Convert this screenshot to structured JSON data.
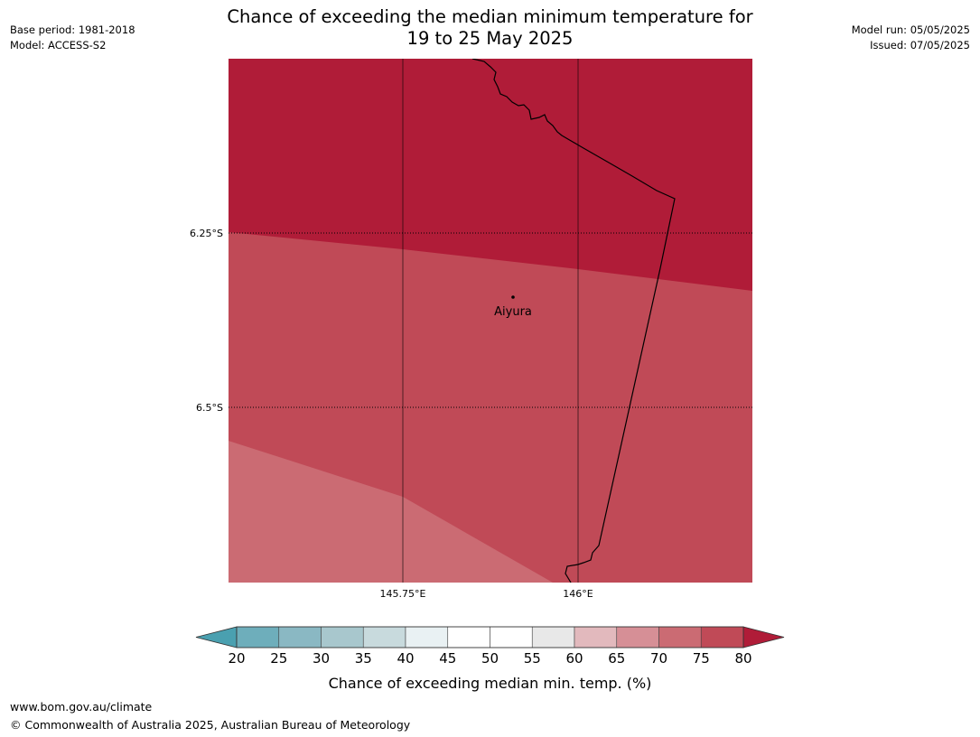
{
  "title": {
    "line1": "Chance of exceeding the median minimum temperature for",
    "line2": "19 to 25 May 2025"
  },
  "meta_left": {
    "base_period": "Base period: 1981-2018",
    "model": "Model: ACCESS-S2"
  },
  "meta_right": {
    "model_run": "Model run: 05/05/2025",
    "issued": "Issued: 07/05/2025"
  },
  "map": {
    "lat_labels": [
      "6.25°S",
      "6.5°S"
    ],
    "lon_labels": [
      "145.75°E",
      "146°E"
    ],
    "place_label": "Aiyura",
    "region_colors": {
      "above_80": "#b01c38",
      "band_75_80": "#c04a57",
      "band_70_75": "#cb6b73"
    },
    "coastline_color": "#000000"
  },
  "colorbar": {
    "ticks": [
      "20",
      "25",
      "30",
      "35",
      "40",
      "45",
      "50",
      "55",
      "60",
      "65",
      "70",
      "75",
      "80"
    ],
    "under_color": "#4aa0b0",
    "over_color": "#b01c38",
    "colors": [
      "#6eaebb",
      "#8ab8c3",
      "#a8c7cd",
      "#c8dadd",
      "#e9f1f3",
      "#ffffff",
      "#ffffff",
      "#e8e8e8",
      "#e2b9bd",
      "#d68f96",
      "#cb6b73",
      "#c04a57"
    ],
    "label": "Chance of exceeding median min. temp. (%)"
  },
  "footer": {
    "url": "www.bom.gov.au/climate",
    "copyright": "© Commonwealth of Australia 2025, Australian Bureau of Meteorology"
  }
}
